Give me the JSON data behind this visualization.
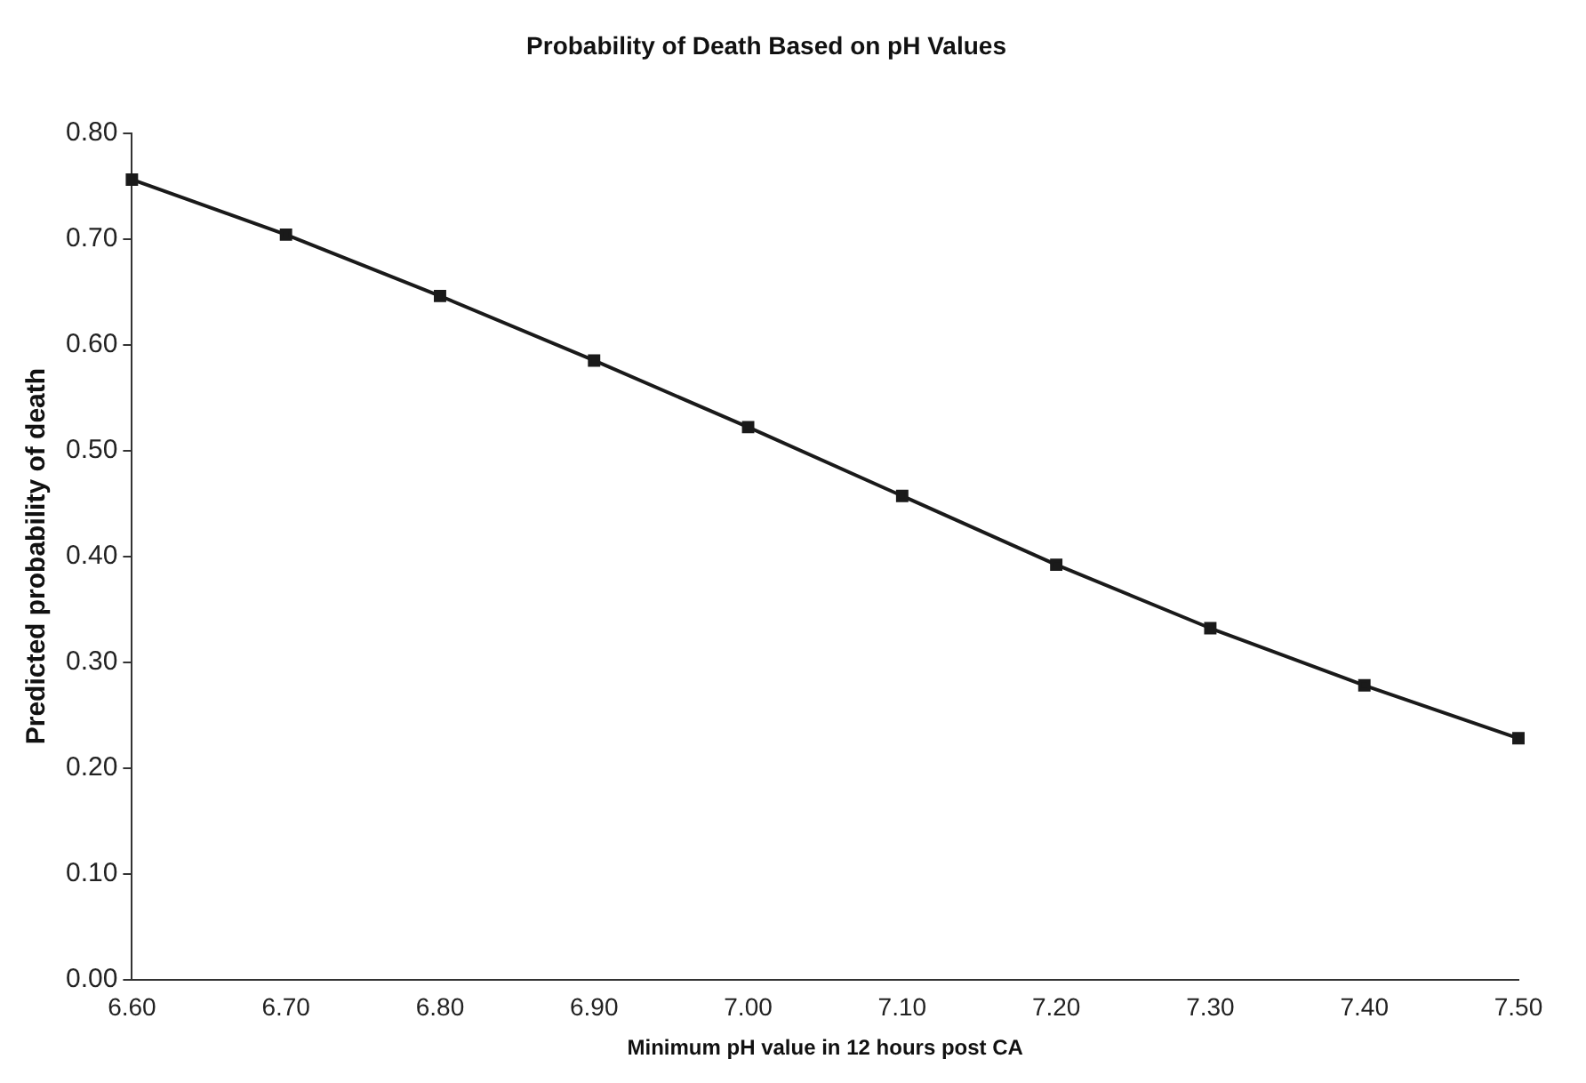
{
  "chart_data": {
    "type": "line",
    "title": "Probability of Death Based on pH Values",
    "xlabel": "Minimum pH value in 12 hours post CA",
    "ylabel": "Predicted probability of death",
    "categories": [
      "6.60",
      "6.70",
      "6.80",
      "6.90",
      "7.00",
      "7.10",
      "7.20",
      "7.30",
      "7.40",
      "7.50"
    ],
    "series": [
      {
        "color": "#1a1a1a",
        "values": [
          0.756,
          0.704,
          0.646,
          0.585,
          0.522,
          0.457,
          0.392,
          0.332,
          0.278,
          0.228
        ]
      }
    ],
    "ylim": [
      0,
      0.8
    ],
    "yticks": [
      {
        "value": 0,
        "label": "0.00"
      },
      {
        "value": 0.1,
        "label": "0.10"
      },
      {
        "value": 0.2,
        "label": "0.20"
      },
      {
        "value": 0.3,
        "label": "0.30"
      },
      {
        "value": 0.4,
        "label": "0.40"
      },
      {
        "value": 0.5,
        "label": "0.50"
      },
      {
        "value": 0.6,
        "label": "0.60"
      },
      {
        "value": 0.7,
        "label": "0.70"
      },
      {
        "value": 0.8,
        "label": "0.80"
      }
    ],
    "grid": false,
    "legend": false,
    "marker": "square",
    "line_style": "solid"
  }
}
